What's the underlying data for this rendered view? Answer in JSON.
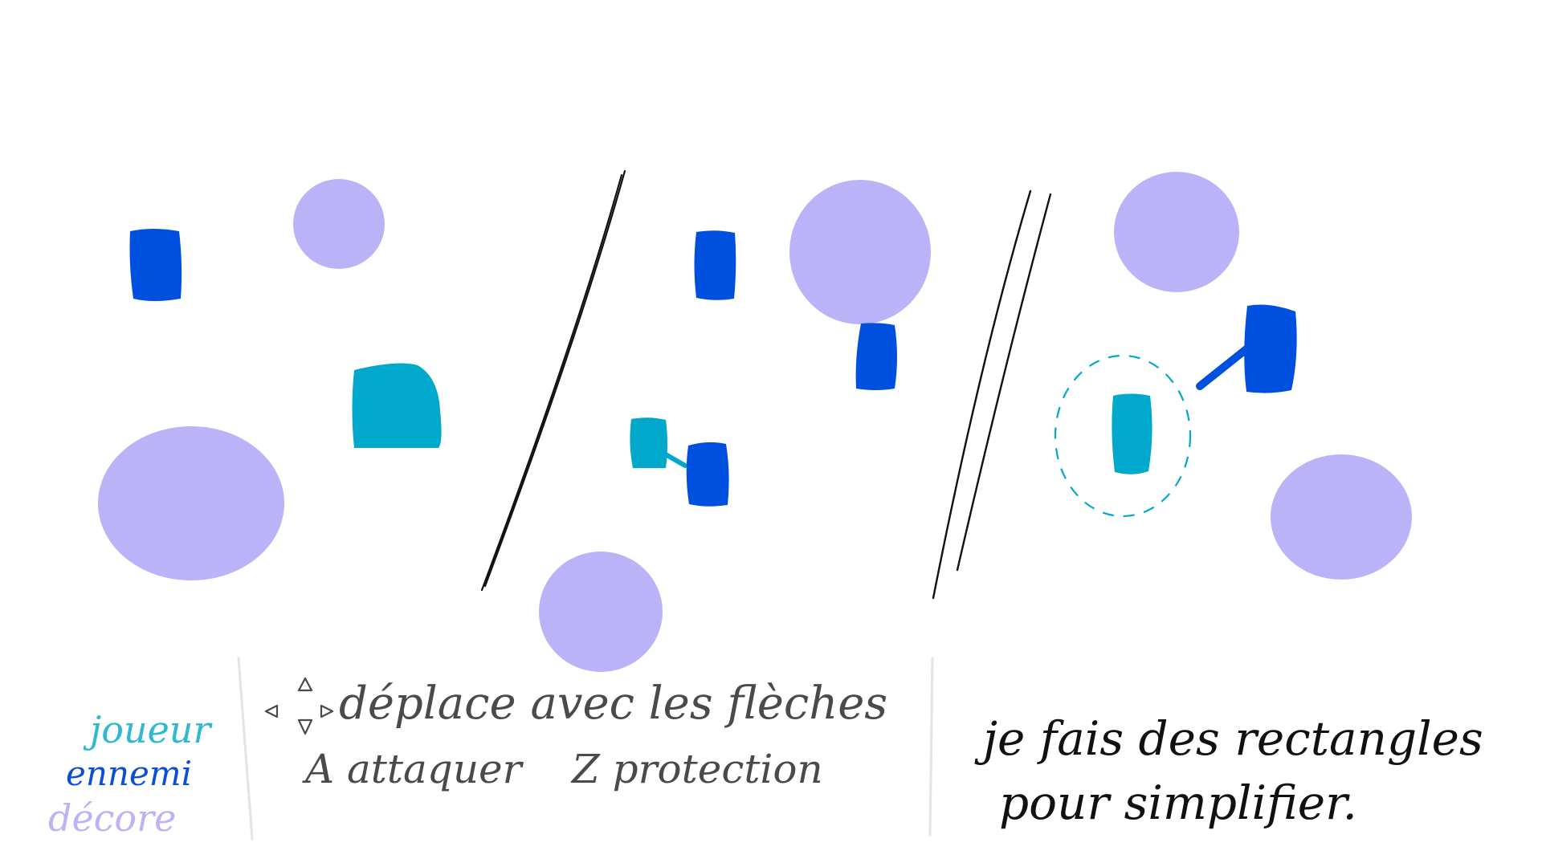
{
  "legend": {
    "player_label": "joueur",
    "enemy_label": "ennemi",
    "decor_label": "décore",
    "colors": {
      "player": "#00a8cc",
      "enemy": "#0050e0",
      "decor": "#bab3f8",
      "ink_grey": "#4a4a4a",
      "ink_black": "#111111",
      "divider_light": "#e3e3e3"
    }
  },
  "controls": {
    "move_text": "déplace avec les flèches",
    "attack_text": "A attaquer",
    "protect_text": "Z protection",
    "arrow_icon": "arrow-keys-icon"
  },
  "note": {
    "line1": "je fais des rectangles",
    "line2": "pour simplifier."
  }
}
